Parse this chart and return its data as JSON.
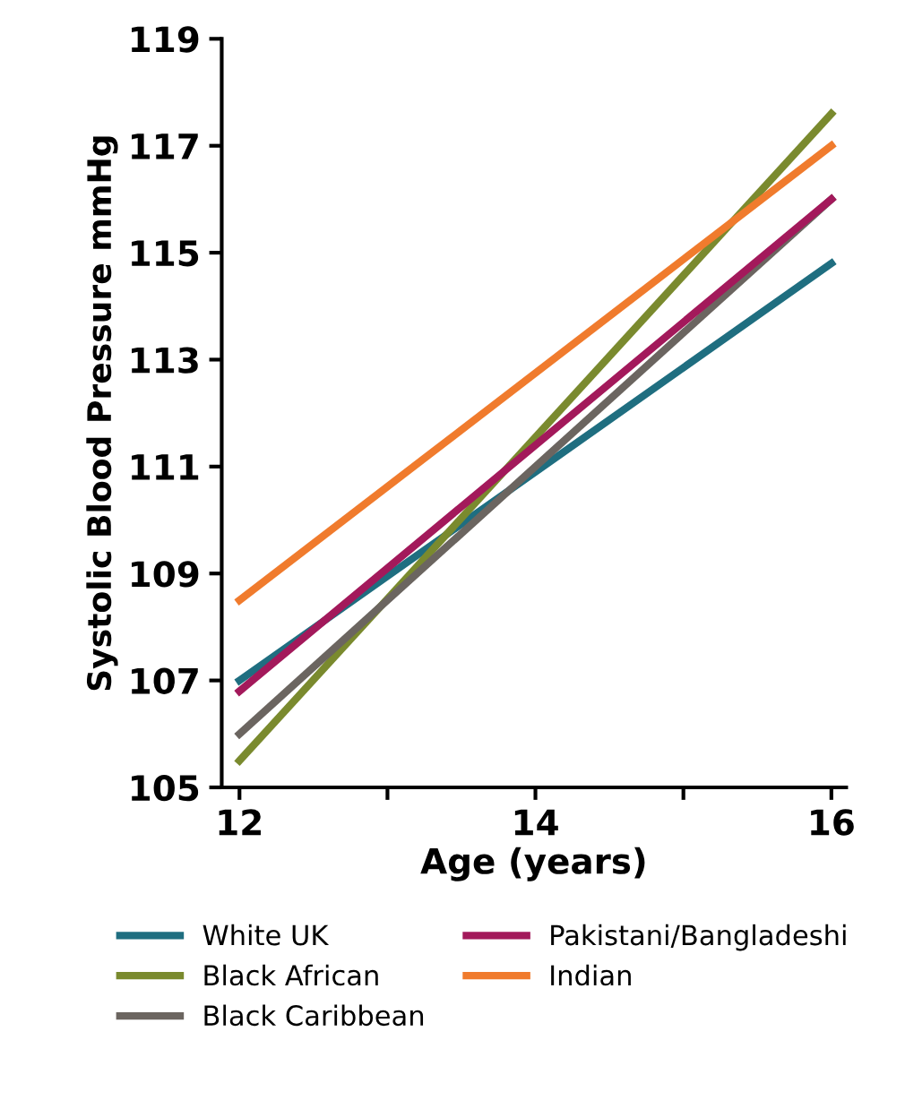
{
  "chart_data": {
    "type": "line",
    "xlabel": "Age (years)",
    "ylabel": "Systolic Blood Pressure mmHg",
    "x": [
      12,
      16
    ],
    "series": [
      {
        "name": "White UK",
        "color": "#1f6e80",
        "values": [
          107.0,
          114.8
        ]
      },
      {
        "name": "Black African",
        "color": "#7a8a2e",
        "values": [
          105.5,
          117.6
        ]
      },
      {
        "name": "Black Caribbean",
        "color": "#6b6560",
        "values": [
          106.0,
          116.0
        ]
      },
      {
        "name": "Pakistani/Bangladeshi",
        "color": "#a3195b",
        "values": [
          106.8,
          116.0
        ]
      },
      {
        "name": "Indian",
        "color": "#f07b2d",
        "values": [
          108.5,
          117.0
        ]
      }
    ],
    "xlim": [
      11.88,
      16.1
    ],
    "ylim": [
      105,
      119
    ],
    "xticks": [
      12,
      {
        "value": 13,
        "label": null
      },
      14,
      {
        "value": 15,
        "label": null
      },
      16
    ],
    "yticks": [
      105,
      107,
      109,
      111,
      113,
      115,
      117,
      119
    ],
    "grid": false,
    "legend": "bottom",
    "marker": "none",
    "line_style": "solid"
  }
}
